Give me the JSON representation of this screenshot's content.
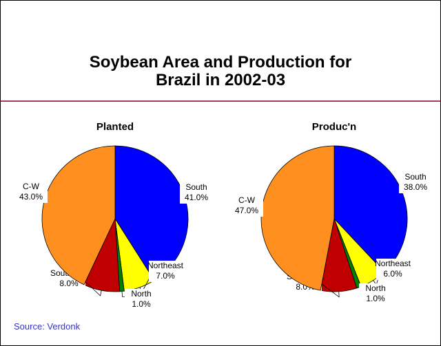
{
  "title": "Soybean Area and Production for Brazil in 2002-03",
  "source": "Source: Verdonk",
  "chart_data": [
    {
      "type": "pie",
      "title": "Planted",
      "categories": [
        "South",
        "Northeast",
        "North",
        "Southeast",
        "C-W"
      ],
      "values": [
        41.0,
        7.0,
        1.0,
        8.0,
        43.0
      ],
      "value_labels": [
        "41.0%",
        "7.0%",
        "1.0%",
        "8.0%",
        "43.0%"
      ],
      "colors": [
        "#0000ff",
        "#ffff00",
        "#008000",
        "#c00000",
        "#ff9020"
      ]
    },
    {
      "type": "pie",
      "title": "Produc'n",
      "categories": [
        "South",
        "Northeast",
        "North",
        "Southeast",
        "C-W"
      ],
      "values": [
        38.0,
        6.0,
        1.0,
        8.0,
        47.0
      ],
      "value_labels": [
        "38.0%",
        "6.0%",
        "1.0%",
        "8.0%",
        "47.0%"
      ],
      "colors": [
        "#0000ff",
        "#ffff00",
        "#008000",
        "#c00000",
        "#ff9020"
      ]
    }
  ]
}
